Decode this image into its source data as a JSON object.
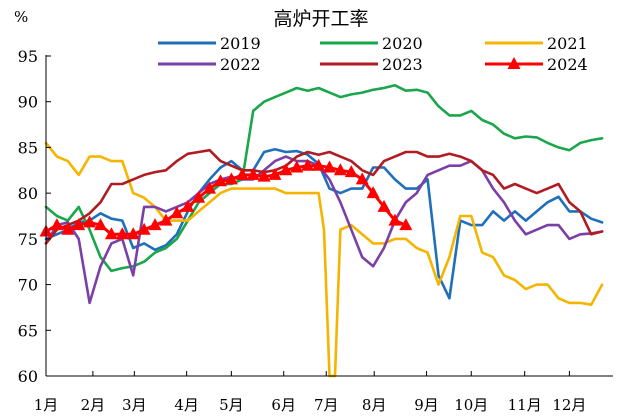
{
  "chart_data": {
    "type": "line",
    "title": "高炉开工率",
    "ylabel": "%",
    "xlabel": "",
    "ylim": [
      60,
      95
    ],
    "yticks": [
      60,
      65,
      70,
      75,
      80,
      85,
      90,
      95
    ],
    "xlim": [
      1,
      53
    ],
    "xticks": [
      {
        "label": "1月",
        "week": 1
      },
      {
        "label": "2月",
        "week": 5.3
      },
      {
        "label": "3月",
        "week": 9.1
      },
      {
        "label": "4月",
        "week": 13.9
      },
      {
        "label": "5月",
        "week": 18.0
      },
      {
        "label": "6月",
        "week": 22.8
      },
      {
        "label": "7月",
        "week": 26.7
      },
      {
        "label": "8月",
        "week": 31.1
      },
      {
        "label": "9月",
        "week": 35.9
      },
      {
        "label": "10月",
        "week": 40.0
      },
      {
        "label": "11月",
        "week": 44.9
      },
      {
        "label": "12月",
        "week": 49.0
      }
    ],
    "legend": "top, 3 columns",
    "grid": false,
    "series": [
      {
        "name": "2019",
        "color": "#1f6fba",
        "marker": "none",
        "x": [
          1,
          2,
          3,
          4,
          5,
          6,
          7,
          8,
          9,
          10,
          11,
          12,
          13,
          14,
          15,
          16,
          17,
          18,
          19,
          20,
          21,
          22,
          23,
          24,
          25,
          26,
          27,
          28,
          29,
          30,
          31,
          32,
          33,
          34,
          35,
          36,
          37,
          38,
          39,
          40,
          41,
          42,
          43,
          44,
          45,
          46,
          47,
          48,
          49,
          50,
          51,
          52
        ],
        "y": [
          75,
          75.5,
          76,
          76.8,
          77,
          77.8,
          77.2,
          77,
          74,
          74.5,
          73.8,
          74.3,
          75.5,
          78,
          80,
          81.5,
          82.8,
          83.5,
          82.5,
          82.5,
          84.5,
          84.8,
          84.5,
          84.6,
          84.2,
          83.2,
          80.5,
          80,
          80.5,
          80.5,
          82.8,
          82.8,
          81.5,
          80.5,
          80.5,
          81.5,
          71,
          68.5,
          77,
          76.5,
          76.5,
          78,
          77,
          78,
          77,
          78,
          79,
          79.6,
          78,
          78,
          77.2,
          76.8
        ]
      },
      {
        "name": "2020",
        "color": "#1aa64a",
        "marker": "none",
        "x": [
          1,
          2,
          3,
          4,
          5,
          6,
          7,
          8,
          9,
          10,
          11,
          12,
          13,
          14,
          15,
          16,
          17,
          18,
          19,
          20,
          21,
          22,
          23,
          24,
          25,
          26,
          27,
          28,
          29,
          30,
          31,
          32,
          33,
          34,
          35,
          36,
          37,
          38,
          39,
          40,
          41,
          42,
          43,
          44,
          45,
          46,
          47,
          48,
          49,
          50,
          51,
          52
        ],
        "y": [
          78.5,
          77.5,
          77,
          78.5,
          76,
          73,
          71.5,
          71.8,
          72,
          72.5,
          73.5,
          74,
          75,
          77,
          79,
          80,
          81,
          81,
          81.5,
          89,
          90,
          90.5,
          91,
          91.5,
          91.2,
          91.5,
          91,
          90.5,
          90.8,
          91,
          91.3,
          91.5,
          91.8,
          91.2,
          91.3,
          91,
          89.5,
          88.5,
          88.5,
          89,
          88,
          87.5,
          86.5,
          86,
          86.2,
          86.1,
          85.5,
          85,
          84.7,
          85.5,
          85.8,
          86
        ]
      },
      {
        "name": "2021",
        "color": "#f5b400",
        "marker": "none",
        "x": [
          1,
          2,
          3,
          4,
          5,
          6,
          7,
          8,
          9,
          10,
          11,
          12,
          13,
          14,
          15,
          16,
          17,
          18,
          19,
          20,
          21,
          22,
          23,
          24,
          25,
          26,
          26.5,
          27,
          27.5,
          28,
          29,
          30,
          31,
          32,
          33,
          34,
          35,
          36,
          37,
          38,
          39,
          40,
          41,
          42,
          43,
          44,
          45,
          46,
          47,
          48,
          49,
          50,
          51,
          52
        ],
        "y": [
          85.5,
          84,
          83.5,
          82,
          84,
          84,
          83.5,
          83.5,
          80,
          79.5,
          78.5,
          77,
          77,
          77,
          78,
          79,
          80,
          80.5,
          80.5,
          80.5,
          80.5,
          80.5,
          80,
          80,
          80,
          80,
          76,
          60,
          60,
          76,
          76.5,
          75.5,
          74.5,
          74.5,
          75,
          75,
          74,
          73.5,
          70,
          73,
          77.5,
          77.5,
          73.5,
          73,
          71,
          70.5,
          69.5,
          70,
          70,
          68.5,
          68,
          68,
          67.8,
          70
        ]
      },
      {
        "name": "2022",
        "color": "#7b3fa6",
        "marker": "none",
        "x": [
          1,
          2,
          3,
          4,
          5,
          6,
          7,
          8,
          9,
          10,
          11,
          12,
          13,
          14,
          15,
          16,
          17,
          18,
          19,
          20,
          21,
          22,
          23,
          24,
          25,
          26,
          27,
          28,
          29,
          30,
          31,
          32,
          33,
          34,
          35,
          36,
          37,
          38,
          39,
          40,
          41,
          42,
          43,
          44,
          45,
          46,
          47,
          48,
          49,
          50,
          51,
          52
        ],
        "y": [
          74.5,
          76.5,
          76.8,
          75,
          68,
          72,
          74.5,
          75,
          71,
          78.5,
          78.5,
          78,
          78.5,
          79,
          80,
          81,
          81.5,
          81.8,
          81.5,
          81.5,
          82.5,
          83.5,
          84,
          83.5,
          83.5,
          83,
          81.5,
          79,
          76,
          73,
          72,
          74,
          77,
          79,
          80,
          82,
          82.5,
          83,
          83,
          83.5,
          82.5,
          80.5,
          79,
          77,
          75.5,
          76,
          76.5,
          76.5,
          75,
          75.5,
          75.6,
          75.8
        ]
      },
      {
        "name": "2023",
        "color": "#b01c22",
        "marker": "none",
        "x": [
          1,
          2,
          3,
          4,
          5,
          6,
          7,
          8,
          9,
          10,
          11,
          12,
          13,
          14,
          15,
          16,
          17,
          18,
          19,
          20,
          21,
          22,
          23,
          24,
          25,
          26,
          27,
          28,
          29,
          30,
          31,
          32,
          33,
          34,
          35,
          36,
          37,
          38,
          39,
          40,
          41,
          42,
          43,
          44,
          45,
          46,
          47,
          48,
          49,
          50,
          51,
          52
        ],
        "y": [
          74.5,
          76,
          76.5,
          77,
          77.8,
          79,
          81,
          81,
          81.5,
          82,
          82.3,
          82.5,
          83.5,
          84.3,
          84.5,
          84.7,
          83.5,
          83,
          82.5,
          82.5,
          82.3,
          82.5,
          83,
          84,
          84.5,
          84.2,
          84.5,
          84,
          83.5,
          82.5,
          82,
          83.5,
          84,
          84.5,
          84.5,
          84,
          84,
          84.3,
          84,
          83.5,
          82.5,
          82,
          80.5,
          81,
          80.5,
          80,
          80.5,
          81,
          79,
          78,
          75.5,
          75.8
        ]
      },
      {
        "name": "2024",
        "color": "#ff0000",
        "marker": "triangle",
        "x": [
          1,
          2,
          3,
          4,
          5,
          6,
          7,
          8,
          9,
          10,
          11,
          12,
          13,
          14,
          15,
          16,
          17,
          18,
          19,
          20,
          21,
          22,
          23,
          24,
          25,
          26,
          27,
          28,
          29,
          30,
          31,
          32,
          33,
          34
        ],
        "y": [
          75.8,
          76.5,
          76,
          76.5,
          76.8,
          76.5,
          75.5,
          75.5,
          75.5,
          76,
          76.5,
          77,
          77.8,
          78.5,
          79.5,
          80.5,
          81.3,
          81.5,
          82,
          82,
          81.8,
          82,
          82.5,
          82.8,
          83,
          83,
          82.8,
          82.5,
          82.3,
          81.5,
          80,
          78.5,
          77,
          76.5
        ]
      }
    ]
  }
}
